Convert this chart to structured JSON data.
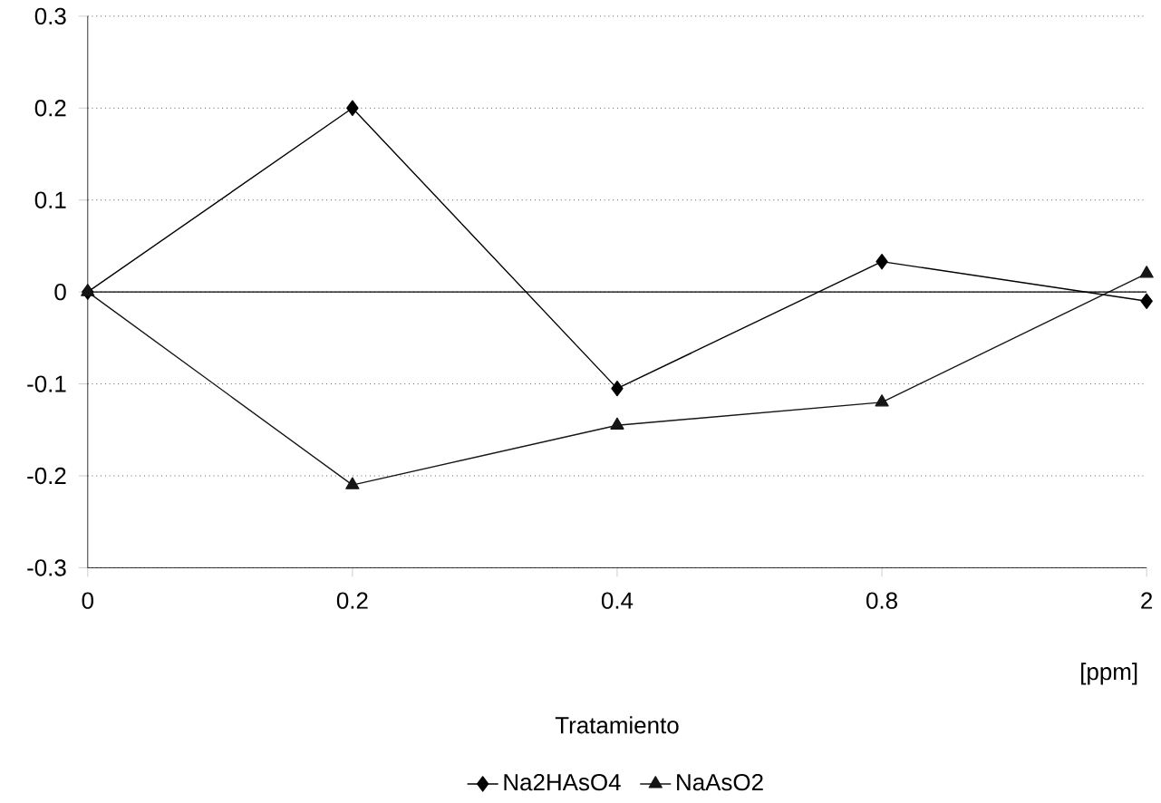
{
  "chart_data": {
    "type": "line",
    "xlabel": "[ppm]",
    "legend_title": "Tratamiento",
    "categories": [
      "0",
      "0.2",
      "0.4",
      "0.8",
      "2"
    ],
    "series": [
      {
        "name": "Na2HAsO4",
        "color": "#000000",
        "marker": "diamond",
        "values": [
          0,
          0.2,
          -0.105,
          0.033,
          -0.01
        ]
      },
      {
        "name": "NaAsO2",
        "color": "#151515",
        "marker": "triangle",
        "values": [
          0,
          -0.21,
          -0.145,
          -0.12,
          0.02
        ]
      }
    ],
    "ylim": [
      -0.3,
      0.3
    ],
    "yticks": [
      -0.3,
      -0.2,
      -0.1,
      0,
      0.1,
      0.2,
      0.3
    ],
    "ref_lines": [
      {
        "axis": "y",
        "value": 0
      }
    ],
    "grid": "y",
    "legend": "bottom",
    "line_style": "solid"
  }
}
